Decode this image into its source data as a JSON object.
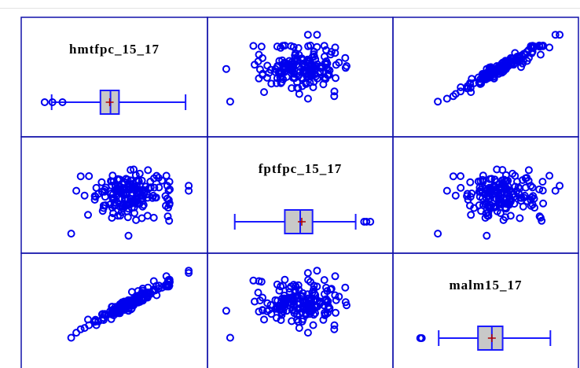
{
  "chart_data": {
    "type": "scatter",
    "kind": "scatter-plot-matrix",
    "variables": [
      "hmtfpc_15_17",
      "fptfpc_15_17",
      "malm15_17"
    ],
    "grid": false,
    "legend": "none",
    "colors": {
      "points": "#0000ee",
      "box_fill": "#c8c8c8",
      "box_stroke": "#1a1aff",
      "mean_marker": "#b00000",
      "frame": "#1111aa"
    },
    "boxplots": [
      {
        "variable": "hmtfpc_15_17",
        "whisker_low": 0.095,
        "q1": 0.41,
        "median": 0.475,
        "q3": 0.53,
        "whisker_high": 0.96,
        "mean": 0.47,
        "outliers": [
          0.05,
          0.1,
          0.165
        ]
      },
      {
        "variable": "fptfpc_15_17",
        "whisker_low": 0.075,
        "q1": 0.4,
        "median": 0.5,
        "q3": 0.58,
        "whisker_high": 0.86,
        "mean": 0.51,
        "outliers": [
          0.915,
          0.93,
          0.955
        ]
      },
      {
        "variable": "malm15_17",
        "whisker_low": 0.195,
        "q1": 0.45,
        "median": 0.54,
        "q3": 0.61,
        "whisker_high": 0.92,
        "mean": 0.54,
        "outliers": [
          0.075,
          0.085
        ]
      }
    ],
    "seed": 7,
    "n": 180
  }
}
